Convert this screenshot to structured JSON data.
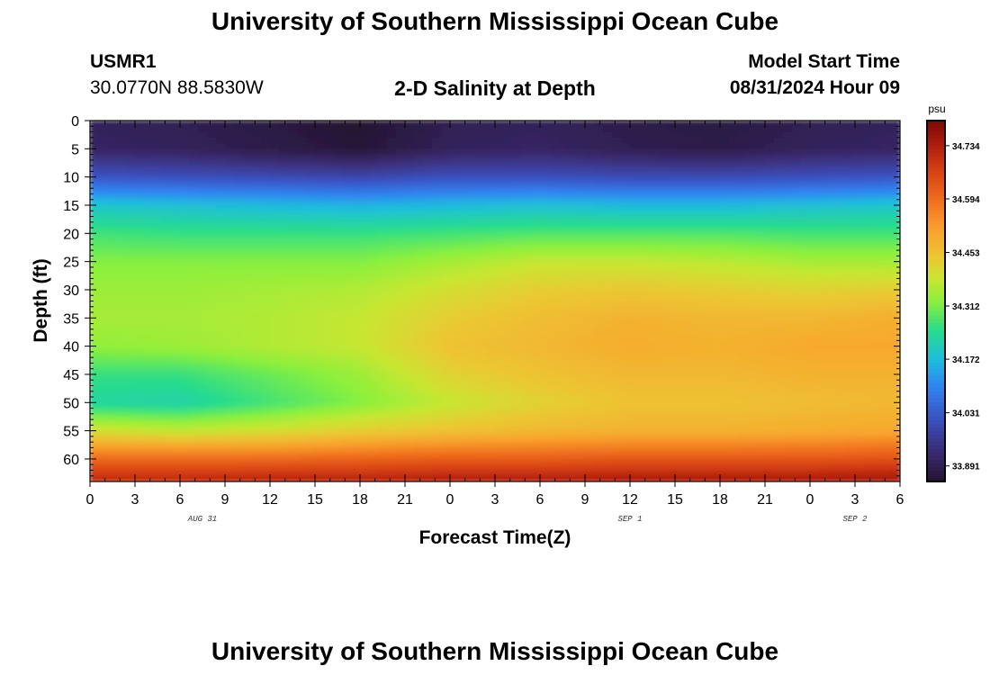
{
  "page": {
    "title": "University of Southern Mississippi Ocean Cube",
    "footer_title": "University of Southern Mississippi Ocean Cube",
    "station_id": "USMR1",
    "station_coords": "30.0770N  88.5830W",
    "plot_title": "2-D Salinity at Depth",
    "model_start_label": "Model Start Time",
    "model_start_value": "08/31/2024 Hour 09"
  },
  "chart_data": {
    "type": "heatmap",
    "title": "2-D Salinity at Depth",
    "xlabel": "Forecast Time(Z)",
    "ylabel": "Depth (ft)",
    "x_ticks": [
      "0",
      "3",
      "6",
      "9",
      "12",
      "15",
      "18",
      "21",
      "0",
      "3",
      "6",
      "9",
      "12",
      "15",
      "18",
      "21",
      "0",
      "3",
      "6"
    ],
    "date_labels": [
      {
        "label": "AUG 31",
        "tick_index": 2.5
      },
      {
        "label": "SEP 1",
        "tick_index": 12
      },
      {
        "label": "SEP 2",
        "tick_index": 17
      }
    ],
    "y_ticks": [
      0,
      5,
      10,
      15,
      20,
      25,
      30,
      35,
      40,
      45,
      50,
      55,
      60
    ],
    "ylim": [
      0,
      64
    ],
    "x_range_hours": [
      0,
      54
    ],
    "colorbar": {
      "unit": "psu",
      "range": [
        33.85,
        34.8
      ],
      "ticks": [
        34.734,
        34.594,
        34.453,
        34.312,
        34.172,
        34.031,
        33.891
      ],
      "tick_labels": [
        "34.734",
        "34.594",
        "34.453",
        "34.312",
        "34.172",
        "34.031",
        "33.891"
      ]
    },
    "depths_ft": [
      0,
      5,
      10,
      15,
      20,
      25,
      30,
      35,
      40,
      45,
      50,
      55,
      60,
      64
    ],
    "hours": [
      0,
      6,
      12,
      18,
      24,
      30,
      36,
      42,
      48,
      54
    ],
    "salinity_psu": [
      [
        33.9,
        33.89,
        33.87,
        33.85,
        33.89,
        33.9,
        33.88,
        33.87,
        33.89,
        33.9
      ],
      [
        33.91,
        33.9,
        33.88,
        33.86,
        33.9,
        33.91,
        33.89,
        33.88,
        33.9,
        33.91
      ],
      [
        34.02,
        34.01,
        34.0,
        33.99,
        34.01,
        34.01,
        34.0,
        34.0,
        34.01,
        34.02
      ],
      [
        34.19,
        34.18,
        34.17,
        34.16,
        34.17,
        34.18,
        34.17,
        34.17,
        34.18,
        34.19
      ],
      [
        34.27,
        34.26,
        34.26,
        34.26,
        34.27,
        34.28,
        34.28,
        34.28,
        34.27,
        34.27
      ],
      [
        34.32,
        34.32,
        34.32,
        34.32,
        34.35,
        34.38,
        34.38,
        34.37,
        34.35,
        34.35
      ],
      [
        34.34,
        34.34,
        34.35,
        34.36,
        34.4,
        34.43,
        34.44,
        34.43,
        34.42,
        34.43
      ],
      [
        34.35,
        34.35,
        34.36,
        34.38,
        34.43,
        34.46,
        34.48,
        34.47,
        34.47,
        34.49
      ],
      [
        34.33,
        34.34,
        34.36,
        34.38,
        34.45,
        34.47,
        34.49,
        34.48,
        34.5,
        34.5
      ],
      [
        34.26,
        34.26,
        34.3,
        34.34,
        34.42,
        34.45,
        34.47,
        34.47,
        34.48,
        34.48
      ],
      [
        34.23,
        34.22,
        34.27,
        34.32,
        34.38,
        34.42,
        34.45,
        34.45,
        34.46,
        34.47
      ],
      [
        34.4,
        34.38,
        34.4,
        34.43,
        34.45,
        34.47,
        34.48,
        34.48,
        34.49,
        34.5
      ],
      [
        34.6,
        34.6,
        34.6,
        34.61,
        34.62,
        34.62,
        34.63,
        34.63,
        34.63,
        34.64
      ],
      [
        34.72,
        34.72,
        34.73,
        34.73,
        34.74,
        34.74,
        34.75,
        34.75,
        34.75,
        34.76
      ]
    ]
  }
}
